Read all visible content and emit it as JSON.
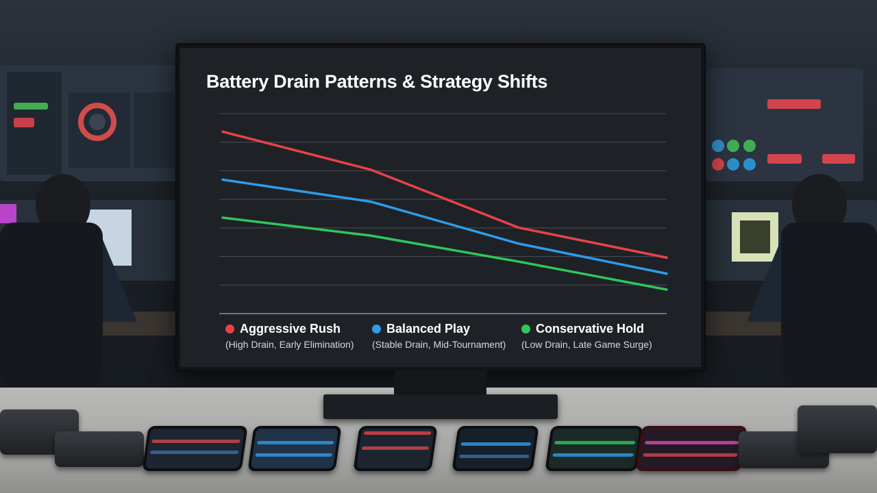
{
  "chart_data": {
    "type": "line",
    "title": "Battery Drain Patterns & Strategy Shifts",
    "xlabel": "",
    "ylabel": "",
    "x": [
      0,
      1,
      2,
      3
    ],
    "ylim": [
      0,
      100
    ],
    "grid": true,
    "legend_position": "bottom",
    "series": [
      {
        "name": "Aggressive Rush",
        "note": "(High Drain, Early Elimination)",
        "color": "#e8424a",
        "values": [
          91,
          72,
          43,
          28
        ]
      },
      {
        "name": "Balanced Play",
        "note": "(Stable Drain, Mid-Tournament)",
        "color": "#2f9bea",
        "values": [
          67,
          56,
          35,
          20
        ]
      },
      {
        "name": "Conservative Hold",
        "note": "(Low Drain, Late Game Surge)",
        "color": "#2ec85a",
        "values": [
          48,
          39,
          26,
          12
        ]
      }
    ]
  }
}
